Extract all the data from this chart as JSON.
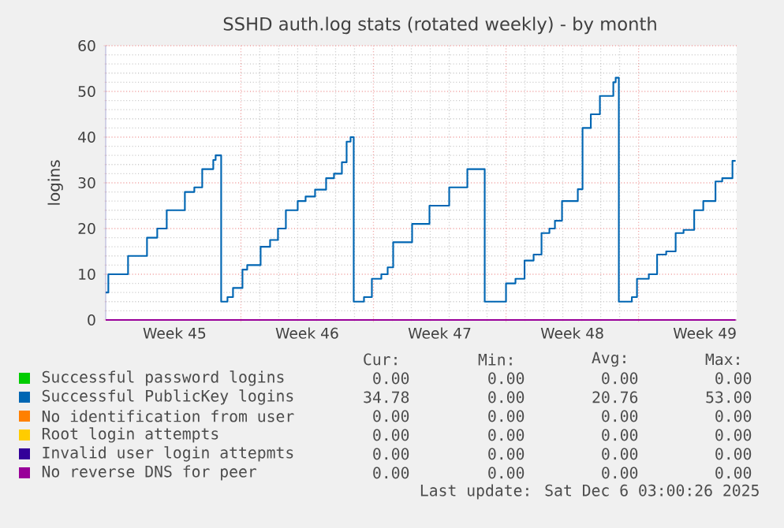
{
  "chart_data": {
    "type": "step",
    "title": "SSHD auth.log stats (rotated weekly) - by month",
    "ylabel": "logins",
    "xlim": [
      "2025-11-02T20:40",
      "2025-12-06T04:20"
    ],
    "ylim": [
      0,
      60
    ],
    "yticks": [
      0,
      10,
      20,
      30,
      40,
      50,
      60
    ],
    "xticks": [
      {
        "value": "2025-11-06T12:00",
        "label": "Week 45"
      },
      {
        "value": "2025-11-10T00:00",
        "label": null
      },
      {
        "value": "2025-11-13T12:00",
        "label": "Week 46"
      },
      {
        "value": "2025-11-17T00:00",
        "label": null
      },
      {
        "value": "2025-11-20T12:00",
        "label": "Week 47"
      },
      {
        "value": "2025-11-24T00:00",
        "label": null
      },
      {
        "value": "2025-11-27T12:00",
        "label": "Week 48"
      },
      {
        "value": "2025-12-01T00:00",
        "label": null
      },
      {
        "value": "2025-12-04T12:00",
        "label": "Week 49"
      }
    ],
    "grid": true,
    "legend": "bottom",
    "series": [
      {
        "name": "Successful password logins",
        "color": "#00cc00"
      },
      {
        "name": "Successful PublicKey logins",
        "color": "#0066b3",
        "x": [
          "2025-11-02T20:40",
          "2025-11-03T00:00",
          "2025-11-04T01:00",
          "2025-11-05T01:00",
          "2025-11-05T14:00",
          "2025-11-06T02:00",
          "2025-11-07T01:00",
          "2025-11-07T13:00",
          "2025-11-07T23:00",
          "2025-11-08T13:00",
          "2025-11-08T16:00",
          "2025-11-08T23:00",
          "2025-11-09T07:00",
          "2025-11-09T14:00",
          "2025-11-10T02:00",
          "2025-11-10T08:00",
          "2025-11-11T01:00",
          "2025-11-11T13:00",
          "2025-11-11T23:00",
          "2025-11-12T09:00",
          "2025-11-13T00:00",
          "2025-11-13T10:00",
          "2025-11-13T22:00",
          "2025-11-14T12:00",
          "2025-11-14T22:00",
          "2025-11-15T08:00",
          "2025-11-15T14:00",
          "2025-11-15T19:00",
          "2025-11-15T23:00",
          "2025-11-16T12:00",
          "2025-11-16T22:00",
          "2025-11-17T10:00",
          "2025-11-17T18:00",
          "2025-11-18T01:00",
          "2025-11-19T01:00",
          "2025-11-19T23:00",
          "2025-11-21T00:00",
          "2025-11-21T23:00",
          "2025-11-22T21:00",
          "2025-11-24T00:00",
          "2025-11-24T12:00",
          "2025-11-24T23:30",
          "2025-11-25T11:00",
          "2025-11-25T21:00",
          "2025-11-26T07:00",
          "2025-11-26T14:00",
          "2025-11-26T23:00",
          "2025-11-27T19:00",
          "2025-11-28T01:00",
          "2025-11-28T11:30",
          "2025-11-28T23:00",
          "2025-11-29T16:00",
          "2025-11-29T19:00",
          "2025-11-29T23:00",
          "2025-11-30T15:30",
          "2025-11-30T22:00",
          "2025-12-01T13:00",
          "2025-12-01T23:30",
          "2025-12-02T11:00",
          "2025-12-02T23:00",
          "2025-12-03T09:00",
          "2025-12-03T22:30",
          "2025-12-04T10:00",
          "2025-12-05T01:30",
          "2025-12-05T10:00",
          "2025-12-05T23:00",
          "2025-12-06T03:00"
        ],
        "values": [
          6,
          10,
          14,
          18,
          20,
          24,
          28,
          29,
          33,
          35,
          36,
          4,
          5,
          7,
          11,
          12,
          16,
          17.5,
          20,
          24,
          26,
          27,
          28.5,
          31,
          32,
          34.5,
          39,
          40,
          4,
          5,
          9,
          10,
          11.5,
          17,
          21,
          25,
          29,
          33,
          4,
          8,
          9,
          13,
          14.3,
          19,
          20,
          21.7,
          26,
          28.6,
          42,
          45,
          49,
          52,
          53,
          4,
          5,
          9,
          10,
          14.3,
          15,
          19,
          19.7,
          24,
          26,
          30.3,
          31,
          34.8,
          34.8
        ]
      },
      {
        "name": "No identification from user",
        "color": "#ff8000"
      },
      {
        "name": "Root login attempts",
        "color": "#ffcc00"
      },
      {
        "name": "Invalid user login attepmts",
        "color": "#330099"
      },
      {
        "name": "No reverse DNS for peer",
        "color": "#990099",
        "x": [
          "2025-11-02T20:40",
          "2025-12-06T03:00"
        ],
        "values": [
          0,
          0
        ]
      }
    ],
    "annotations": [
      "Cur:",
      "Min:",
      "Avg:",
      "Max:",
      "0.00",
      "0.00",
      "0.00",
      "0.00",
      "34.78",
      "0.00",
      "20.76",
      "53.00",
      "0.00",
      "0.00",
      "0.00",
      "0.00",
      "0.00",
      "0.00",
      "0.00",
      "0.00",
      "0.00",
      "0.00",
      "0.00",
      "0.00",
      "0.00",
      "0.00",
      "0.00",
      "0.00",
      "Last update: Sat Dec  6 03:00:26 2025"
    ]
  }
}
